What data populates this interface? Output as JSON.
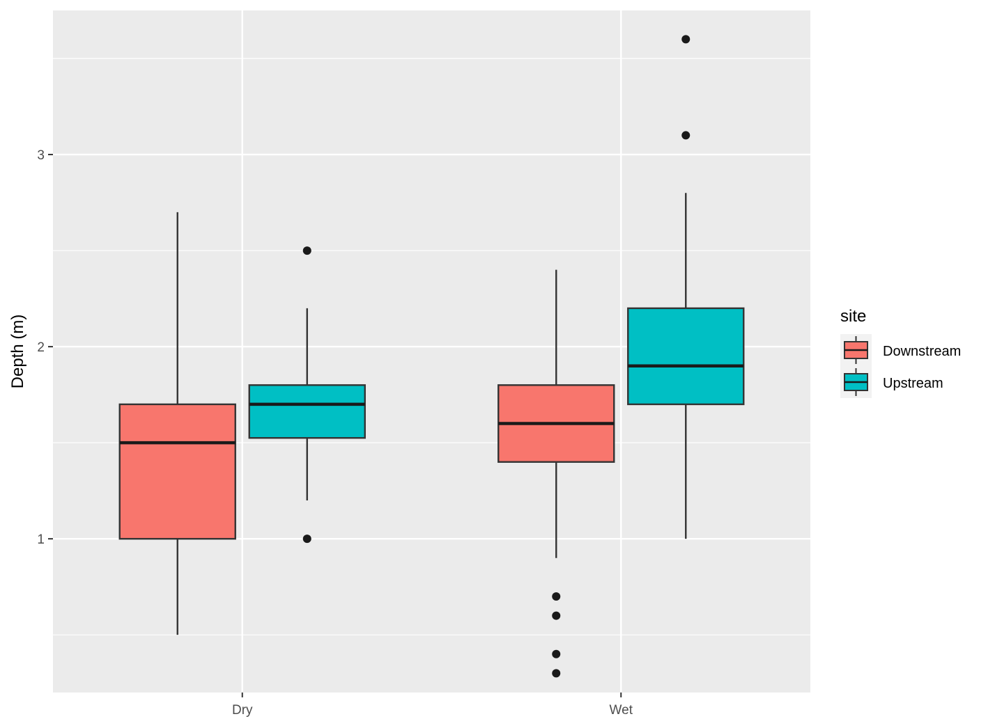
{
  "chart_data": {
    "type": "boxplot",
    "title": "",
    "xlabel": "",
    "ylabel": "Depth (m)",
    "ylim": [
      0.2,
      3.75
    ],
    "y_ticks": [
      1,
      2,
      3
    ],
    "y_tick_labels": [
      "1",
      "2",
      "3"
    ],
    "y_minor_ticks": [
      0.5,
      1.5,
      2.5,
      3.5
    ],
    "grid": true,
    "categories": [
      "Dry",
      "Wet"
    ],
    "legend": {
      "title": "site",
      "position": "right"
    },
    "series": [
      {
        "name": "Downstream",
        "color": "#F8766D",
        "boxes": [
          {
            "category": "Dry",
            "min": 0.5,
            "q1": 1.0,
            "median": 1.5,
            "q3": 1.7,
            "max": 2.7,
            "outliers": []
          },
          {
            "category": "Wet",
            "min": 0.9,
            "q1": 1.4,
            "median": 1.6,
            "q3": 1.8,
            "max": 2.4,
            "outliers": [
              0.7,
              0.6,
              0.4,
              0.3
            ]
          }
        ]
      },
      {
        "name": "Upstream",
        "color": "#00BFC4",
        "boxes": [
          {
            "category": "Dry",
            "min": 1.2,
            "q1": 1.525,
            "median": 1.7,
            "q3": 1.8,
            "max": 2.2,
            "outliers": [
              2.5,
              1.0
            ]
          },
          {
            "category": "Wet",
            "min": 1.0,
            "q1": 1.7,
            "median": 1.9,
            "q3": 2.2,
            "max": 2.8,
            "outliers": [
              3.6,
              3.1
            ]
          }
        ]
      }
    ]
  }
}
